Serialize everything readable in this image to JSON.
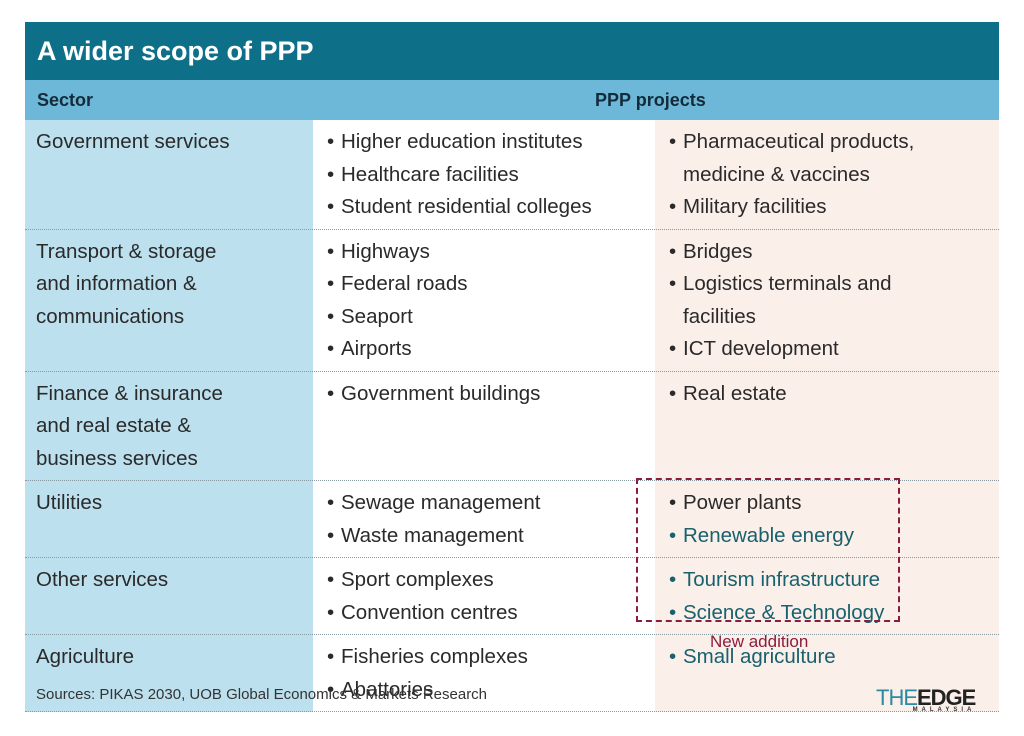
{
  "title": "A wider scope of PPP",
  "headers": {
    "sector": "Sector",
    "projects": "PPP projects"
  },
  "rows": [
    {
      "sector": [
        "Government services"
      ],
      "col2": [
        {
          "t": "Higher education institutes"
        },
        {
          "t": "Healthcare facilities"
        },
        {
          "t": "Student residential colleges"
        }
      ],
      "col3": [
        {
          "t": "Pharmaceutical products,"
        },
        {
          "t": "medicine & vaccines",
          "cont": true
        },
        {
          "t": "Military facilities"
        }
      ]
    },
    {
      "sector": [
        "Transport & storage",
        "and information &",
        "communications"
      ],
      "col2": [
        {
          "t": "Highways"
        },
        {
          "t": "Federal roads"
        },
        {
          "t": "Seaport"
        },
        {
          "t": "Airports"
        }
      ],
      "col3": [
        {
          "t": "Bridges"
        },
        {
          "t": "Logistics terminals and"
        },
        {
          "t": "facilities",
          "cont": true
        },
        {
          "t": "ICT development"
        }
      ]
    },
    {
      "sector": [
        "Finance & insurance",
        "and real estate &",
        "business services"
      ],
      "col2": [
        {
          "t": "Government buildings"
        }
      ],
      "col3": [
        {
          "t": "Real estate"
        }
      ]
    },
    {
      "sector": [
        "Utilities"
      ],
      "col2": [
        {
          "t": "Sewage management"
        },
        {
          "t": "Waste management"
        }
      ],
      "col3": [
        {
          "t": "Power plants"
        },
        {
          "t": "Renewable energy",
          "new": true
        }
      ]
    },
    {
      "sector": [
        "Other services"
      ],
      "col2": [
        {
          "t": "Sport complexes"
        },
        {
          "t": "Convention centres"
        }
      ],
      "col3": [
        {
          "t": "Tourism infrastructure",
          "new": true
        },
        {
          "t": "Science & Technology",
          "new": true
        }
      ]
    },
    {
      "sector": [
        "Agriculture"
      ],
      "col2": [
        {
          "t": "Fisheries complexes"
        },
        {
          "t": "Abattories"
        }
      ],
      "col3": [
        {
          "t": "Small agriculture",
          "new": true
        }
      ]
    }
  ],
  "new_addition_label": "New addition",
  "source": "Sources: PIKAS 2030, UOB Global Economics & Markets Research",
  "logo": {
    "the": "THE",
    "edge": "EDGE",
    "sub": "MALAYSIA"
  },
  "bullet": "•",
  "colors": {
    "title_bg": "#0e6f88",
    "header_bg": "#6db8d8",
    "sector_bg": "#bde0ee",
    "col3_bg": "#fbefea",
    "new_text": "#18616d",
    "dash": "#8c1c3c"
  }
}
